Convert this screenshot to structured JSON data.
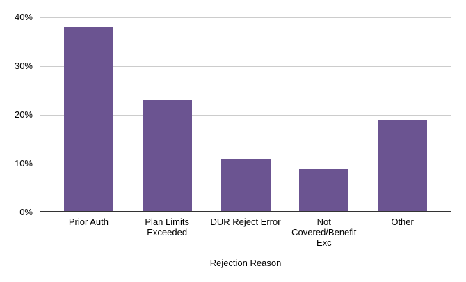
{
  "chart_data": {
    "type": "bar",
    "title": "",
    "xlabel": "Rejection Reason",
    "ylabel": "",
    "ylim": [
      0,
      40
    ],
    "grid": true,
    "legend": "none",
    "categories": [
      "Prior Auth",
      "Plan Limits Exceeded",
      "DUR Reject Error",
      "Not Covered/Benefit Exc",
      "Other"
    ],
    "values": [
      38,
      23,
      11,
      9,
      19
    ],
    "value_unit": "percent",
    "yticks": [
      {
        "value": 0,
        "label": "0%"
      },
      {
        "value": 10,
        "label": "10%"
      },
      {
        "value": 20,
        "label": "20%"
      },
      {
        "value": 30,
        "label": "30%"
      },
      {
        "value": 40,
        "label": "40%"
      }
    ],
    "label_lines": [
      [
        "Prior Auth"
      ],
      [
        "Plan Limits",
        "Exceeded"
      ],
      [
        "DUR Reject Error"
      ],
      [
        "Not",
        "Covered/Benefit",
        "Exc"
      ],
      [
        "Other"
      ]
    ],
    "colors": {
      "bar": "#6b5491",
      "gridline": "#cccccc",
      "axis_line": "#333333",
      "text": "#000000",
      "background": "#ffffff"
    }
  }
}
